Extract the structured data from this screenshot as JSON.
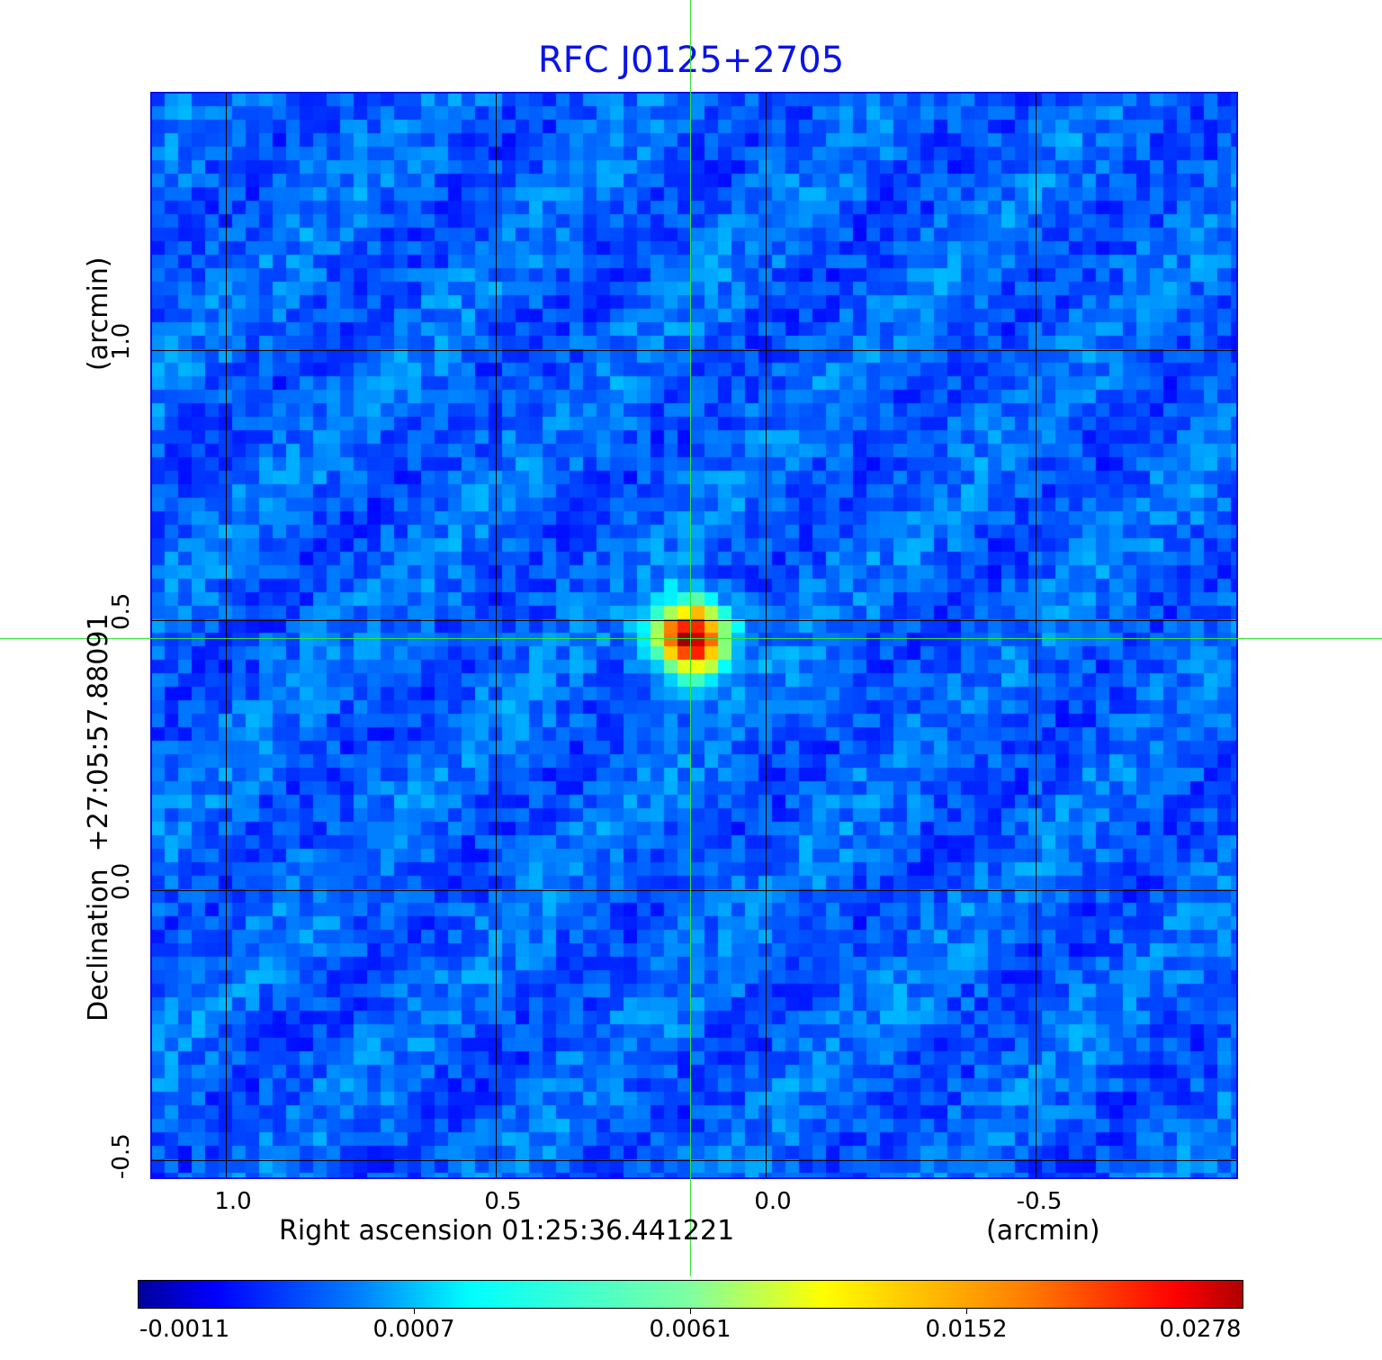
{
  "chart_data": {
    "type": "heatmap",
    "title": "RFC J0125+2705",
    "xlabel": "Right ascension  01:25:36.441221",
    "xunit": "(arcmin)",
    "ylabel": "Declination  +27:05:57.88091",
    "yunit": "(arcmin)",
    "x_ticks": [
      "1.0",
      "0.5",
      "0.0",
      "-0.5"
    ],
    "y_ticks": [
      "1.0",
      "0.5",
      "0.0",
      "-0.5"
    ],
    "xlim": [
      1.14,
      -0.87
    ],
    "ylim": [
      -0.53,
      1.48
    ],
    "grid": true,
    "crosshair": {
      "x": 0.14,
      "y": 0.47
    },
    "source_peak": {
      "x": 0.14,
      "y": 0.47,
      "value": 0.0278
    },
    "colorbar": {
      "colormap": "jet",
      "ticks": [
        "-0.0011",
        "0.0007",
        "0.0061",
        "0.0152",
        "0.0278"
      ],
      "range": [
        -0.0011,
        0.0278
      ]
    }
  },
  "colors": {
    "title": "#0a14e6",
    "frame": "#1010e0",
    "crosshair": "#33e633"
  }
}
